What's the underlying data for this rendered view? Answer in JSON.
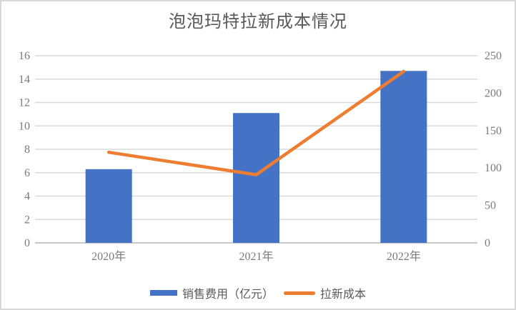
{
  "chart_data": {
    "type": "bar",
    "title": "泡泡玛特拉新成本情况",
    "categories": [
      "2020年",
      "2021年",
      "2022年"
    ],
    "series": [
      {
        "name": "销售费用（亿元）",
        "renderer": "bar",
        "axis": "left",
        "values": [
          6.3,
          11.1,
          14.7
        ],
        "color": "#4472C4"
      },
      {
        "name": "拉新成本",
        "renderer": "line",
        "axis": "right",
        "values": [
          121,
          91,
          229
        ],
        "color": "#ED7D31"
      }
    ],
    "left_axis": {
      "min": 0,
      "max": 16,
      "ticks": [
        0,
        2,
        4,
        6,
        8,
        10,
        12,
        14,
        16
      ]
    },
    "right_axis": {
      "min": 0,
      "max": 250,
      "ticks": [
        0,
        50,
        100,
        150,
        200,
        250
      ]
    },
    "xlabel": "",
    "ylabel": "",
    "grid": true,
    "legend_position": "bottom"
  },
  "style": {
    "gridline_color": "#d9d9d9",
    "axis_line_color": "#c9c7c7",
    "tick_label_color": "#7a7a7a",
    "title_color": "#595959"
  }
}
